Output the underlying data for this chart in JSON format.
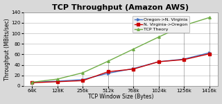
{
  "title": "TCP Throughput (Amazon AWS)",
  "xlabel": "TCP Window Size (Bytes)",
  "ylabel": "Throughput (MBits/sec)",
  "x_labels": [
    "64K",
    "128K",
    "256k",
    "512k",
    "768k",
    "1024k",
    "1256k",
    "1416k"
  ],
  "oregon_to_virginia": [
    7,
    9,
    12,
    24,
    33,
    46,
    51,
    63
  ],
  "virginia_to_oregon": [
    6,
    8,
    10,
    27,
    32,
    46,
    50,
    61
  ],
  "tcp_theory": [
    7,
    13,
    25,
    47,
    70,
    93,
    115,
    130
  ],
  "color_oregon": "#4472C4",
  "color_virginia": "#CC0000",
  "color_theory": "#70AD47",
  "ylim": [
    0,
    140
  ],
  "yticks": [
    0,
    20,
    40,
    60,
    80,
    100,
    120,
    140
  ],
  "bg_outer": "#D9D9D9",
  "bg_plot": "#FFFFFF",
  "legend_oregon": "Oregon->N. Virginia",
  "legend_virginia": "N. Virginia->Oregon",
  "legend_theory": "TCP Theory",
  "title_fontsize": 8,
  "axis_label_fontsize": 5.5,
  "tick_fontsize": 5,
  "legend_fontsize": 4.5
}
